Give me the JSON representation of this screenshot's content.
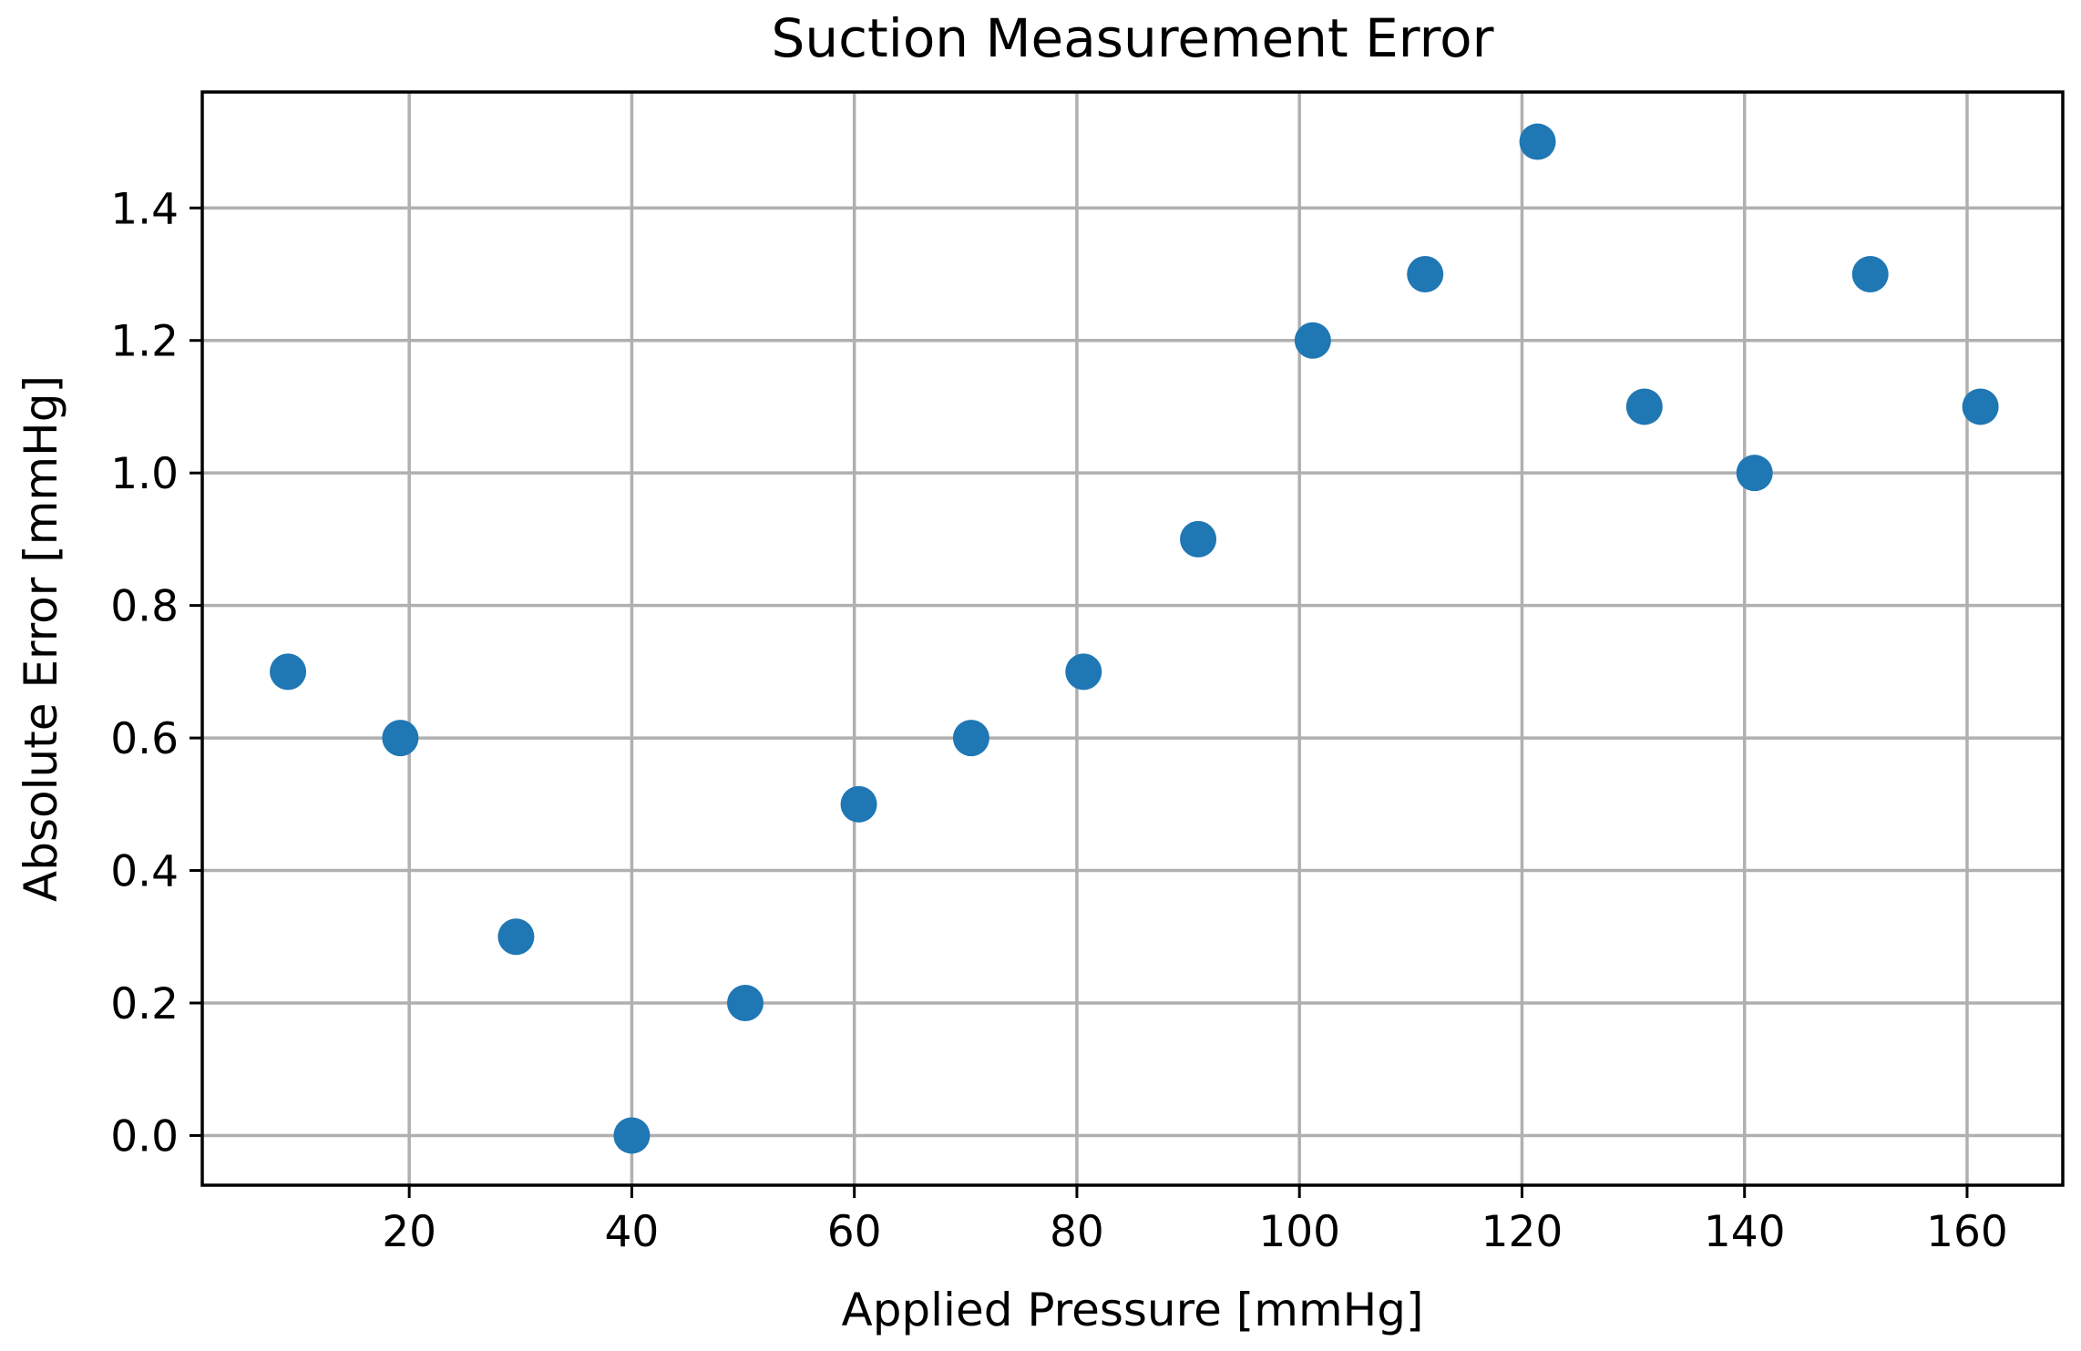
{
  "chart_data": {
    "type": "scatter",
    "title": "Suction Measurement Error",
    "xlabel": "Applied Pressure [mmHg]",
    "ylabel": "Absolute Error [mmHg]",
    "xlim": [
      1.4,
      168.6
    ],
    "ylim": [
      -0.075,
      1.575
    ],
    "xticks": [
      20,
      40,
      60,
      80,
      100,
      120,
      140,
      160
    ],
    "xtick_labels": [
      "20",
      "40",
      "60",
      "80",
      "100",
      "120",
      "140",
      "160"
    ],
    "yticks": [
      0.0,
      0.2,
      0.4,
      0.6,
      0.8,
      1.0,
      1.2,
      1.4
    ],
    "ytick_labels": [
      "0.0",
      "0.2",
      "0.4",
      "0.6",
      "0.8",
      "1.0",
      "1.2",
      "1.4"
    ],
    "grid": true,
    "marker_color": "#1f77b4",
    "grid_color": "#b0b0b0",
    "series": [
      {
        "x": [
          9.1,
          19.2,
          29.6,
          40.0,
          50.2,
          60.4,
          70.5,
          80.6,
          90.9,
          101.2,
          111.3,
          121.4,
          131.0,
          140.9,
          151.3,
          161.2
        ],
        "y": [
          0.7,
          0.6,
          0.3,
          0.0,
          0.2,
          0.5,
          0.6,
          0.7,
          0.9,
          1.2,
          1.3,
          1.5,
          1.1,
          1.0,
          1.3,
          1.1
        ]
      }
    ]
  }
}
